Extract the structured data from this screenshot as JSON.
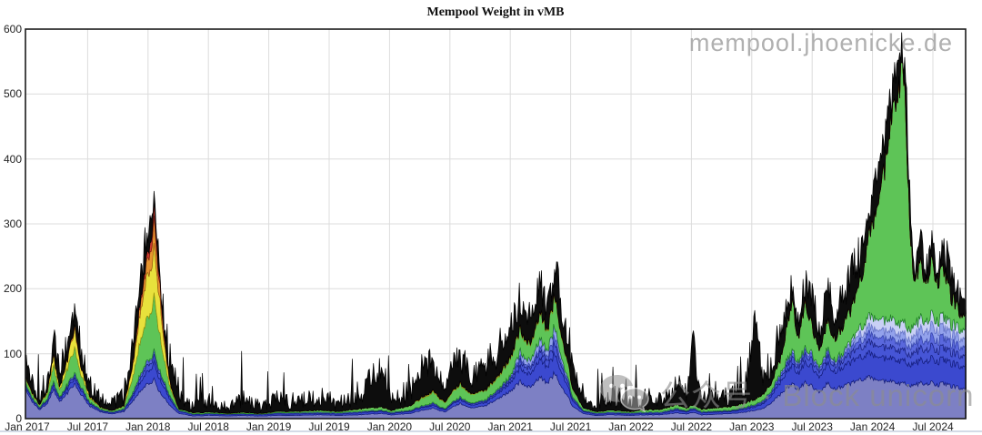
{
  "watermark": {
    "site": "mempool.jhoenicke.de"
  },
  "overlay_watermark": {
    "icon": "wechat-icon",
    "text": "公众号 · Block unicorn"
  },
  "chart_data": {
    "type": "area",
    "stacked": true,
    "title": "Mempool Weight in vMB",
    "xlabel": "",
    "ylabel": "",
    "y_unit": "vMB",
    "ylim": [
      0,
      600
    ],
    "y_ticks": [
      0,
      100,
      200,
      300,
      400,
      500,
      600
    ],
    "grid": true,
    "legend_position": "none",
    "x_unit": "months since Jan 2017",
    "x_ticks": [
      {
        "t": 0,
        "label": "Jan 2017"
      },
      {
        "t": 6,
        "label": "Jul 2017"
      },
      {
        "t": 12,
        "label": "Jan 2018"
      },
      {
        "t": 18,
        "label": "Jul 2018"
      },
      {
        "t": 24,
        "label": "Jan 2019"
      },
      {
        "t": 30,
        "label": "Jul 2019"
      },
      {
        "t": 36,
        "label": "Jan 2020"
      },
      {
        "t": 42,
        "label": "Jul 2020"
      },
      {
        "t": 48,
        "label": "Jan 2021"
      },
      {
        "t": 54,
        "label": "Jul 2021"
      },
      {
        "t": 60,
        "label": "Jan 2022"
      },
      {
        "t": 66,
        "label": "Jul 2022"
      },
      {
        "t": 72,
        "label": "Jan 2023"
      },
      {
        "t": 78,
        "label": "Jul 2023"
      },
      {
        "t": 84,
        "label": "Jan 2024"
      },
      {
        "t": 90,
        "label": "Jul 2024"
      }
    ],
    "total_color": "#0d0d0d",
    "bands": [
      {
        "name": "slate-base",
        "color": "#7d80c4",
        "stroke": "#23255f"
      },
      {
        "name": "blue-1",
        "color": "#3b49cf",
        "stroke": "#141d7d"
      },
      {
        "name": "blue-2",
        "color": "#4655d6",
        "stroke": "#141d7d"
      },
      {
        "name": "blue-3",
        "color": "#5a68dd",
        "stroke": "#1b2380"
      },
      {
        "name": "periwinkle",
        "color": "#93a2ec",
        "stroke": "#3a4ab0"
      },
      {
        "name": "lavender",
        "color": "#c9d0f5",
        "stroke": "#6b79c8"
      },
      {
        "name": "green",
        "color": "#5ec457",
        "stroke": "#1d7d22"
      },
      {
        "name": "yellow",
        "color": "#e8e13c",
        "stroke": "#9a9410"
      },
      {
        "name": "orange",
        "color": "#e6952f",
        "stroke": "#9c5a10"
      },
      {
        "name": "red",
        "color": "#c93a2e",
        "stroke": "#7e1a12"
      }
    ],
    "keyframe_format": "[t_months, cum_slate, cum_blue1, cum_blue2, cum_blue3, cum_periwinkle, cum_lavender, cum_green, cum_yellow, cum_orange, cum_red, total] all vMB (cumulative stack tops)",
    "keyframes": [
      [
        -0.2,
        45,
        50,
        52,
        53,
        54,
        54,
        62,
        64,
        64,
        64,
        96
      ],
      [
        0.5,
        26,
        30,
        31,
        32,
        32,
        32,
        38,
        40,
        40,
        40,
        58
      ],
      [
        1.2,
        14,
        16,
        17,
        17,
        18,
        18,
        21,
        22,
        22,
        22,
        34
      ],
      [
        2.0,
        24,
        28,
        30,
        31,
        31,
        31,
        40,
        43,
        43,
        43,
        58
      ],
      [
        2.6,
        45,
        52,
        55,
        56,
        57,
        57,
        82,
        98,
        99,
        99,
        122
      ],
      [
        3.2,
        26,
        30,
        32,
        33,
        33,
        33,
        44,
        48,
        48,
        48,
        68
      ],
      [
        4.0,
        40,
        47,
        50,
        52,
        53,
        53,
        78,
        92,
        93,
        93,
        118
      ],
      [
        4.7,
        55,
        64,
        68,
        70,
        72,
        72,
        112,
        142,
        147,
        147,
        168
      ],
      [
        5.4,
        36,
        42,
        45,
        46,
        47,
        47,
        64,
        74,
        75,
        75,
        96
      ],
      [
        6.2,
        20,
        24,
        25,
        26,
        26,
        26,
        33,
        36,
        36,
        36,
        52
      ],
      [
        7.2,
        11,
        13,
        14,
        14,
        15,
        15,
        18,
        19,
        19,
        19,
        30
      ],
      [
        8.4,
        7,
        9,
        10,
        10,
        10,
        10,
        12,
        12,
        12,
        12,
        22
      ],
      [
        9.6,
        11,
        13,
        14,
        14,
        15,
        15,
        19,
        20,
        20,
        20,
        34
      ],
      [
        10.5,
        28,
        35,
        38,
        40,
        41,
        41,
        66,
        84,
        88,
        88,
        112
      ],
      [
        11.3,
        44,
        58,
        65,
        69,
        71,
        71,
        125,
        172,
        186,
        190,
        218
      ],
      [
        12.0,
        55,
        75,
        85,
        90,
        92,
        92,
        160,
        228,
        252,
        262,
        285
      ],
      [
        12.6,
        60,
        85,
        95,
        100,
        102,
        103,
        185,
        258,
        298,
        320,
        332
      ],
      [
        13.1,
        42,
        62,
        70,
        74,
        76,
        76,
        135,
        192,
        216,
        226,
        248
      ],
      [
        13.7,
        30,
        45,
        50,
        52,
        53,
        53,
        82,
        102,
        109,
        111,
        128
      ],
      [
        14.3,
        18,
        26,
        29,
        30,
        31,
        31,
        42,
        46,
        47,
        47,
        92
      ],
      [
        15.1,
        8,
        11,
        12,
        12,
        13,
        13,
        15,
        15,
        15,
        15,
        38
      ],
      [
        16.5,
        4,
        6,
        7,
        7,
        7,
        7,
        9,
        9,
        9,
        9,
        20
      ],
      [
        18,
        5,
        7,
        8,
        8,
        8,
        8,
        10,
        10,
        10,
        10,
        28
      ],
      [
        20,
        4,
        6,
        6,
        7,
        7,
        7,
        8,
        8,
        8,
        8,
        18
      ],
      [
        21.5,
        5,
        7,
        8,
        8,
        8,
        8,
        10,
        10,
        10,
        10,
        30
      ],
      [
        23,
        4,
        6,
        6,
        7,
        7,
        7,
        8,
        8,
        8,
        8,
        20
      ],
      [
        25,
        5,
        7,
        8,
        8,
        9,
        9,
        11,
        11,
        11,
        11,
        32
      ],
      [
        27,
        5,
        7,
        8,
        8,
        9,
        9,
        11,
        11,
        11,
        11,
        26
      ],
      [
        29,
        6,
        8,
        9,
        9,
        10,
        10,
        13,
        13,
        13,
        13,
        35
      ],
      [
        31,
        5,
        7,
        8,
        8,
        9,
        9,
        11,
        11,
        11,
        11,
        24
      ],
      [
        33,
        6,
        9,
        10,
        10,
        11,
        11,
        15,
        15,
        15,
        15,
        40
      ],
      [
        35.3,
        8,
        11,
        12,
        13,
        13,
        13,
        18,
        18,
        18,
        18,
        88
      ],
      [
        36.2,
        6,
        8,
        9,
        9,
        10,
        10,
        13,
        13,
        13,
        13,
        30
      ],
      [
        38,
        8,
        11,
        12,
        13,
        13,
        13,
        20,
        20,
        20,
        20,
        42
      ],
      [
        39.5,
        14,
        18,
        19,
        20,
        21,
        21,
        34,
        36,
        36,
        36,
        88
      ],
      [
        40.3,
        16,
        20,
        22,
        23,
        24,
        24,
        40,
        42,
        42,
        42,
        96
      ],
      [
        41.5,
        10,
        13,
        14,
        15,
        15,
        15,
        24,
        25,
        25,
        25,
        52
      ],
      [
        43,
        24,
        30,
        32,
        33,
        34,
        34,
        54,
        56,
        56,
        56,
        98
      ],
      [
        44.2,
        16,
        20,
        22,
        23,
        23,
        23,
        36,
        37,
        37,
        37,
        64
      ],
      [
        45.5,
        20,
        25,
        27,
        28,
        29,
        29,
        44,
        45,
        45,
        45,
        76
      ],
      [
        46.8,
        30,
        38,
        41,
        43,
        44,
        44,
        62,
        64,
        64,
        64,
        112
      ],
      [
        48,
        42,
        55,
        60,
        63,
        65,
        65,
        92,
        94,
        94,
        94,
        140
      ],
      [
        49,
        58,
        80,
        90,
        95,
        104,
        105,
        138,
        140,
        140,
        140,
        188
      ],
      [
        50,
        48,
        68,
        76,
        80,
        88,
        89,
        112,
        114,
        114,
        114,
        156
      ],
      [
        51,
        64,
        92,
        104,
        110,
        122,
        123,
        162,
        164,
        164,
        164,
        205
      ],
      [
        51.7,
        55,
        80,
        90,
        96,
        104,
        105,
        135,
        137,
        137,
        137,
        172
      ],
      [
        52.4,
        70,
        100,
        116,
        126,
        140,
        142,
        188,
        190,
        190,
        190,
        240
      ],
      [
        53.2,
        48,
        70,
        79,
        84,
        90,
        91,
        122,
        124,
        124,
        124,
        162
      ],
      [
        54.2,
        20,
        29,
        32,
        34,
        35,
        35,
        48,
        49,
        49,
        49,
        92
      ],
      [
        55.2,
        8,
        11,
        12,
        13,
        13,
        13,
        17,
        17,
        17,
        17,
        40
      ],
      [
        56.5,
        5,
        7,
        8,
        8,
        9,
        9,
        11,
        11,
        11,
        11,
        22
      ],
      [
        58,
        6,
        8,
        9,
        9,
        10,
        10,
        13,
        13,
        13,
        13,
        38
      ],
      [
        60,
        5,
        7,
        8,
        8,
        9,
        9,
        11,
        11,
        11,
        11,
        24
      ],
      [
        61.5,
        6,
        8,
        9,
        9,
        10,
        10,
        14,
        14,
        14,
        14,
        34
      ],
      [
        63,
        6,
        8,
        9,
        9,
        10,
        10,
        14,
        14,
        14,
        14,
        26
      ],
      [
        64.5,
        9,
        13,
        14,
        15,
        16,
        16,
        22,
        22,
        22,
        22,
        55
      ],
      [
        65.5,
        7,
        10,
        11,
        12,
        12,
        12,
        16,
        16,
        16,
        16,
        35
      ],
      [
        66.2,
        10,
        14,
        15,
        16,
        17,
        17,
        22,
        22,
        22,
        22,
        122
      ],
      [
        67,
        6,
        9,
        10,
        10,
        11,
        11,
        15,
        15,
        15,
        15,
        30
      ],
      [
        68.5,
        7,
        10,
        11,
        12,
        12,
        12,
        17,
        17,
        17,
        17,
        40
      ],
      [
        70,
        8,
        11,
        12,
        13,
        13,
        13,
        19,
        19,
        19,
        19,
        34
      ],
      [
        71.3,
        10,
        14,
        16,
        17,
        17,
        17,
        24,
        24,
        24,
        24,
        48
      ],
      [
        72.3,
        13,
        18,
        20,
        21,
        22,
        22,
        30,
        30,
        30,
        30,
        160
      ],
      [
        73.1,
        15,
        22,
        24,
        26,
        27,
        27,
        36,
        36,
        36,
        36,
        62
      ],
      [
        74,
        25,
        36,
        40,
        42,
        44,
        44,
        56,
        56,
        56,
        56,
        92
      ],
      [
        75,
        40,
        60,
        67,
        71,
        74,
        74,
        100,
        100,
        100,
        100,
        142
      ],
      [
        76,
        55,
        85,
        96,
        102,
        106,
        107,
        186,
        186,
        186,
        186,
        212
      ],
      [
        76.6,
        45,
        70,
        79,
        84,
        87,
        88,
        124,
        124,
        124,
        124,
        152
      ],
      [
        77.3,
        55,
        85,
        96,
        102,
        106,
        107,
        176,
        176,
        176,
        176,
        206
      ],
      [
        78,
        50,
        80,
        90,
        96,
        100,
        100,
        142,
        142,
        142,
        142,
        186
      ],
      [
        78.8,
        40,
        63,
        71,
        76,
        79,
        79,
        104,
        104,
        104,
        104,
        132
      ],
      [
        79.5,
        55,
        86,
        97,
        103,
        107,
        108,
        152,
        152,
        152,
        152,
        200
      ],
      [
        80.3,
        45,
        71,
        80,
        85,
        89,
        89,
        122,
        122,
        122,
        122,
        162
      ],
      [
        81,
        50,
        79,
        89,
        95,
        99,
        101,
        142,
        142,
        142,
        142,
        186
      ],
      [
        82,
        55,
        88,
        101,
        109,
        116,
        121,
        172,
        172,
        172,
        172,
        232
      ],
      [
        82.8,
        60,
        95,
        110,
        120,
        130,
        141,
        212,
        212,
        212,
        212,
        252
      ],
      [
        83.4,
        64,
        100,
        117,
        129,
        139,
        153,
        262,
        262,
        262,
        262,
        300
      ],
      [
        84,
        62,
        98,
        115,
        128,
        139,
        156,
        298,
        298,
        298,
        298,
        340
      ],
      [
        84.6,
        60,
        96,
        113,
        126,
        138,
        155,
        340,
        340,
        340,
        340,
        386
      ],
      [
        85.3,
        58,
        93,
        110,
        123,
        135,
        152,
        398,
        398,
        398,
        398,
        442
      ],
      [
        86,
        56,
        91,
        107,
        120,
        133,
        150,
        462,
        462,
        462,
        462,
        502
      ],
      [
        86.9,
        55,
        90,
        106,
        119,
        131,
        148,
        545,
        545,
        545,
        545,
        562
      ],
      [
        87.3,
        54,
        88,
        104,
        117,
        129,
        146,
        480,
        480,
        480,
        480,
        520
      ],
      [
        87.7,
        52,
        85,
        100,
        113,
        125,
        141,
        310,
        310,
        310,
        310,
        352
      ],
      [
        88.1,
        50,
        82,
        98,
        110,
        122,
        138,
        200,
        200,
        200,
        200,
        232
      ],
      [
        88.7,
        55,
        90,
        108,
        122,
        138,
        155,
        242,
        242,
        242,
        242,
        288
      ],
      [
        89.3,
        52,
        86,
        103,
        116,
        131,
        146,
        204,
        204,
        204,
        204,
        238
      ],
      [
        89.9,
        55,
        92,
        110,
        125,
        142,
        158,
        238,
        238,
        238,
        238,
        272
      ],
      [
        90.5,
        52,
        88,
        105,
        120,
        136,
        151,
        212,
        212,
        212,
        212,
        248
      ],
      [
        91.1,
        55,
        92,
        110,
        126,
        142,
        158,
        232,
        232,
        232,
        232,
        266
      ],
      [
        91.8,
        50,
        85,
        102,
        116,
        130,
        145,
        188,
        188,
        188,
        188,
        224
      ],
      [
        92.5,
        48,
        82,
        98,
        112,
        126,
        140,
        168,
        168,
        168,
        168,
        192
      ],
      [
        93.3,
        45,
        78,
        95,
        108,
        120,
        133,
        152,
        152,
        152,
        152,
        172
      ]
    ]
  }
}
